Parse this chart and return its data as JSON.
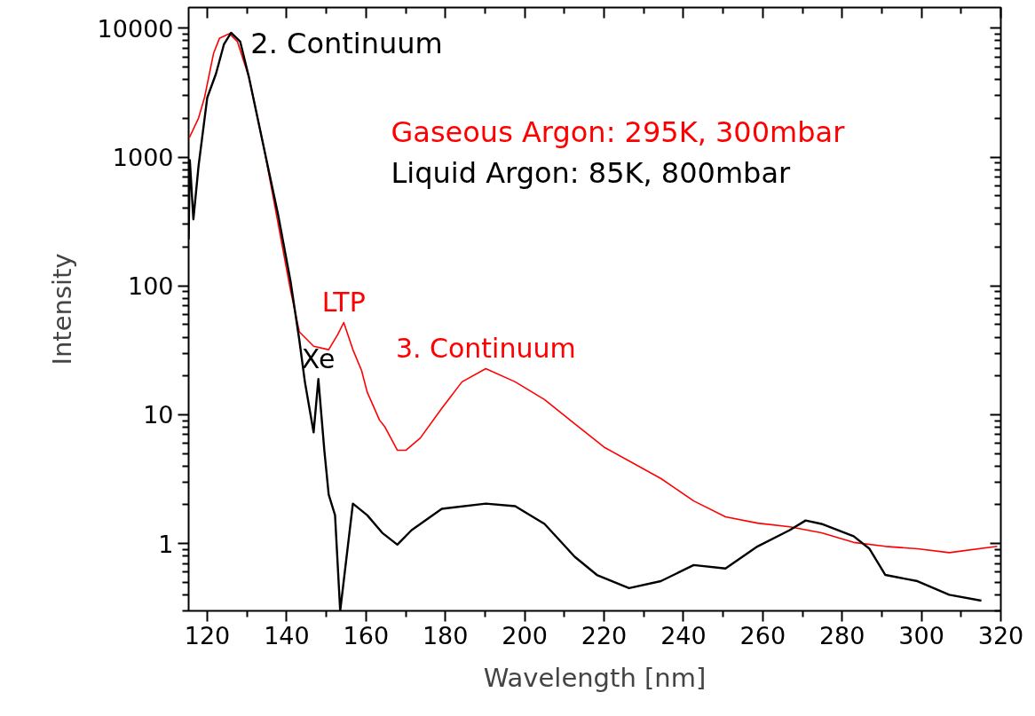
{
  "chart_data": {
    "type": "line",
    "xlabel": "Wavelength [nm]",
    "ylabel": "Intensity",
    "xlim": [
      115.3,
      320
    ],
    "xticks": [
      120,
      140,
      160,
      180,
      200,
      220,
      240,
      260,
      280,
      300,
      320
    ],
    "ylim": [
      0.3,
      14500
    ],
    "yticks": [
      1,
      10,
      100,
      1000,
      10000
    ],
    "log": "y",
    "grid": false,
    "legend": "top right",
    "marker": "none",
    "line_style": "solid",
    "series": [
      {
        "name": "Gaseous Argon: 295K, 300mbar",
        "color": "#ff0000",
        "x": [
          115.5,
          117.8,
          119.3,
          121.6,
          123.1,
          125.6,
          127.6,
          130.5,
          134.3,
          137.9,
          141.0,
          143.2,
          146.8,
          150.6,
          152.9,
          154.4,
          156.7,
          158.9,
          160.3,
          163.4,
          164.7,
          167.9,
          170.1,
          173.7,
          179.1,
          184.2,
          190.2,
          197.6,
          205.0,
          212.6,
          220.0,
          234.3,
          242.6,
          250.6,
          258.7,
          266.8,
          274.8,
          282.9,
          290.9,
          299.0,
          307.0,
          319.1
        ],
        "values": [
          1420,
          2010,
          2900,
          6410,
          8400,
          9100,
          7880,
          4180,
          1170,
          299,
          92,
          44,
          34,
          32,
          42,
          52,
          32,
          22,
          15,
          9.1,
          8.1,
          5.3,
          5.3,
          6.6,
          11.2,
          18,
          22.8,
          18,
          13.1,
          8.5,
          5.6,
          3.2,
          2.14,
          1.61,
          1.44,
          1.35,
          1.21,
          1.02,
          0.95,
          0.91,
          0.85,
          0.95
        ]
      },
      {
        "name": "Liquid Argon: 85K, 800mbar",
        "color": "#000000",
        "x": [
          115.3,
          115.6,
          116.5,
          117.8,
          120.0,
          122.2,
          124.2,
          126.0,
          128.3,
          130.5,
          134.3,
          137.9,
          141.0,
          143.2,
          144.6,
          146.8,
          148.0,
          149.5,
          150.6,
          152.2,
          153.5,
          156.7,
          160.3,
          164.1,
          167.9,
          171.5,
          179.1,
          190.2,
          197.6,
          205.0,
          212.6,
          218.2,
          226.3,
          234.3,
          242.6,
          250.6,
          258.7,
          266.8,
          270.8,
          274.8,
          282.9,
          286.9,
          290.9,
          299.0,
          307.0,
          315.1
        ],
        "values": [
          230,
          950,
          329,
          853,
          2900,
          4450,
          7510,
          9240,
          7880,
          4180,
          1170,
          351,
          108,
          38,
          18,
          7.3,
          18.9,
          5.3,
          2.4,
          1.66,
          0.3,
          2.04,
          1.66,
          1.21,
          0.98,
          1.27,
          1.86,
          2.04,
          1.95,
          1.42,
          0.79,
          0.57,
          0.45,
          0.51,
          0.68,
          0.64,
          0.95,
          1.27,
          1.51,
          1.42,
          1.14,
          0.91,
          0.57,
          0.51,
          0.4,
          0.36
        ]
      }
    ],
    "annotations": [
      {
        "text": "2. Continuum",
        "x": 126.0,
        "y": 9240
      },
      {
        "text": "LTP",
        "x": 154.4,
        "y": 52
      },
      {
        "text": "3. Continuum",
        "x": 190.2,
        "y": 22.8
      },
      {
        "text": "Xe",
        "x": 148.0,
        "y": 18.9
      }
    ]
  }
}
